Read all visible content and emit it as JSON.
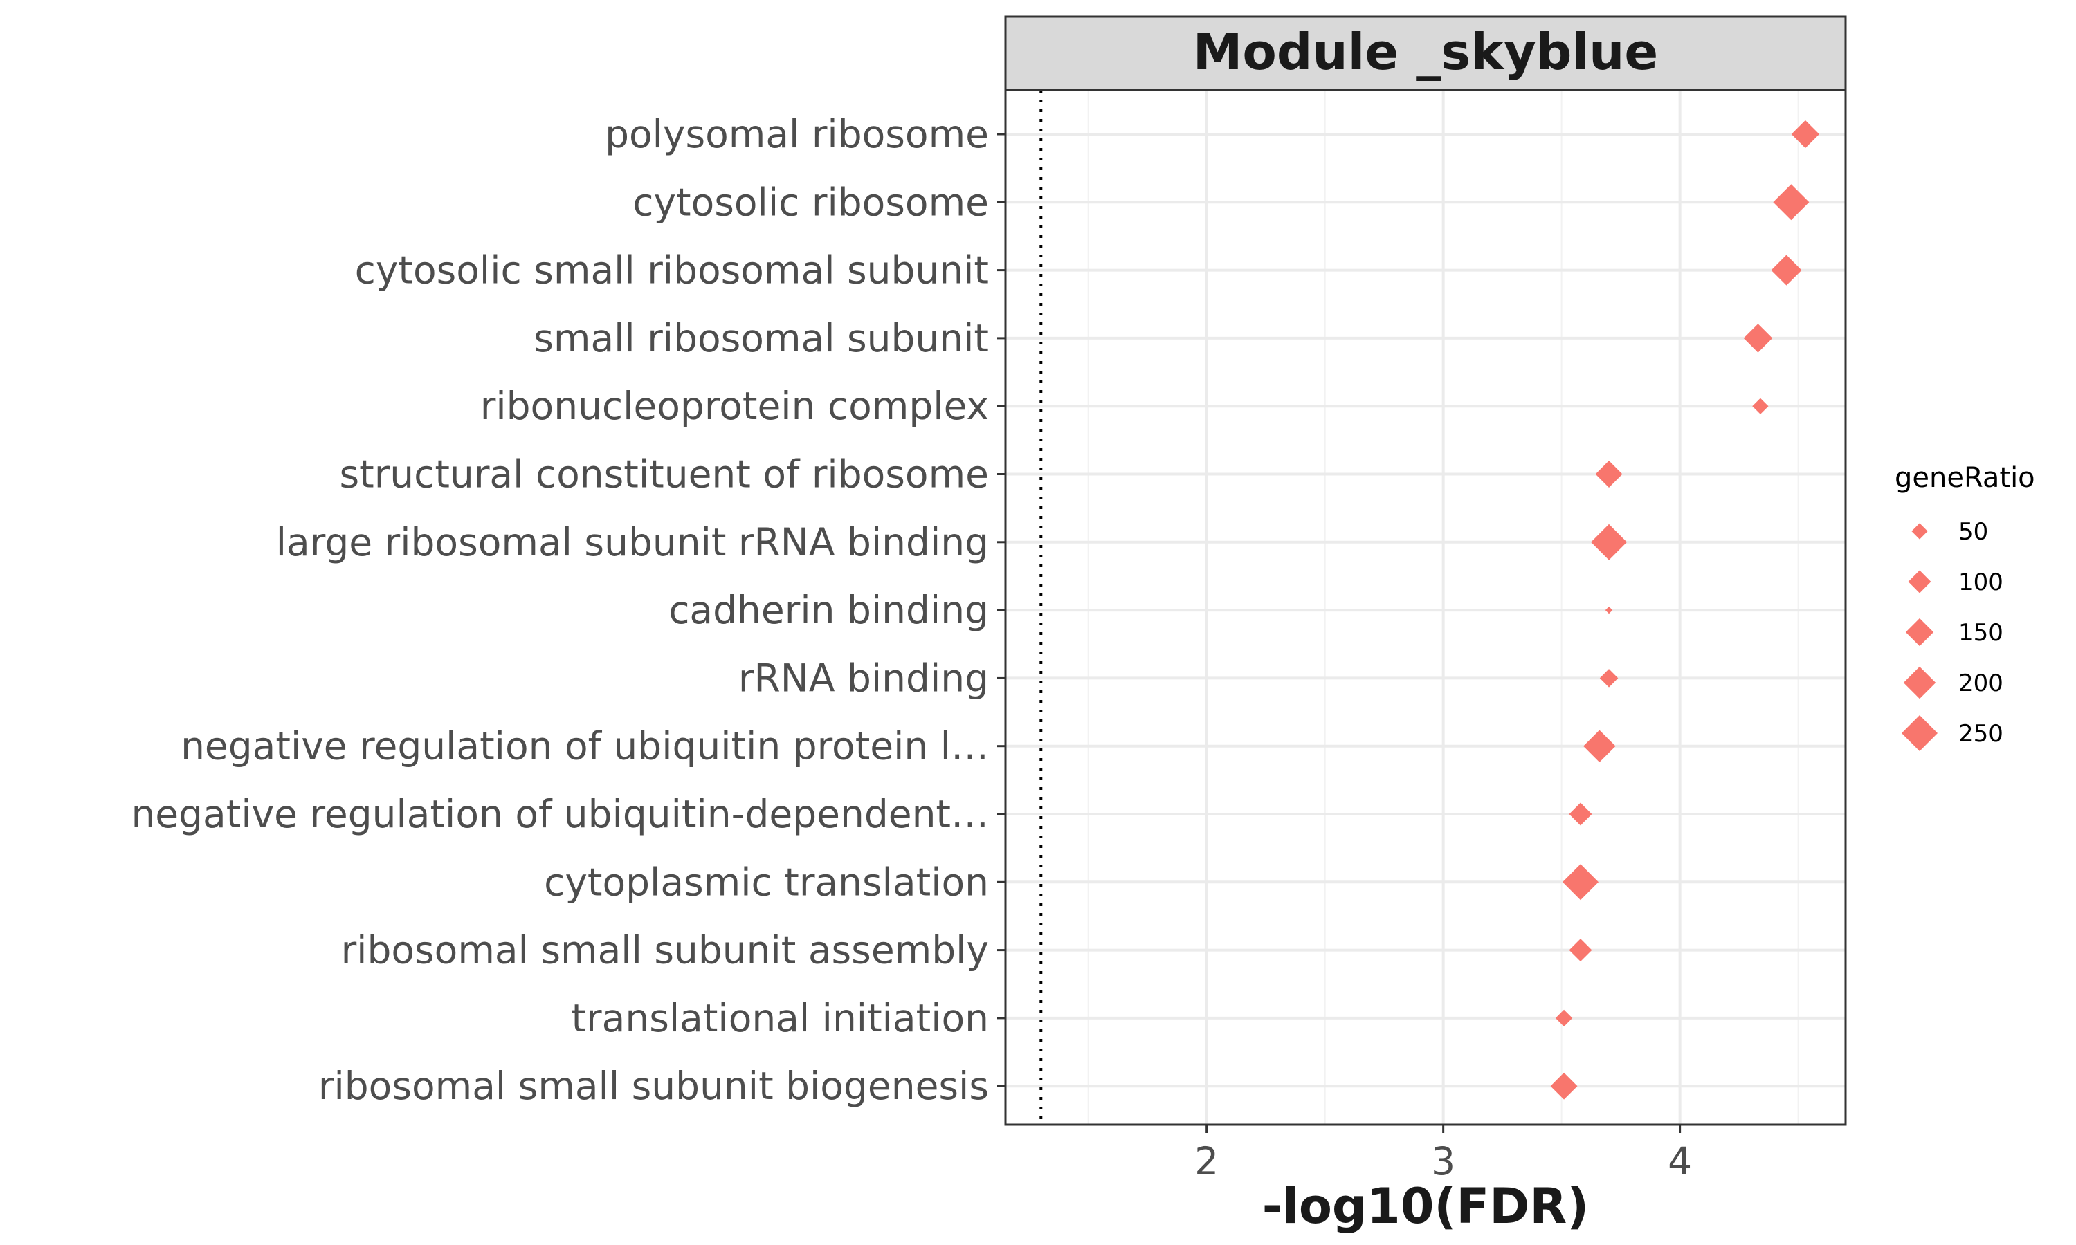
{
  "chart_data": {
    "type": "scatter",
    "title": "Module _skyblue",
    "xlabel": "-log10(FDR)",
    "ylabel": "",
    "xlim": [
      1.15,
      4.7
    ],
    "xticks": [
      2,
      3,
      4
    ],
    "xtick_labels": [
      "2",
      "3",
      "4"
    ],
    "reference_line_x": 1.3,
    "marker": "diamond",
    "colors": {
      "points": "#F8766D",
      "strip_bg": "#D9D9D9",
      "grid": "#EBEBEB",
      "border": "#333333"
    },
    "grid": true,
    "categories": [
      "polysomal ribosome",
      "cytosolic ribosome",
      "cytosolic small ribosomal subunit",
      "small ribosomal subunit",
      "ribonucleoprotein complex",
      "structural constituent of ribosome",
      "large ribosomal subunit rRNA binding",
      "cadherin binding",
      "rRNA binding",
      "negative regulation of ubiquitin protein l…",
      "negative regulation of ubiquitin-dependent…",
      "cytoplasmic translation",
      "ribosomal small subunit assembly",
      "translational initiation",
      "ribosomal small subunit biogenesis"
    ],
    "series": [
      {
        "points": [
          {
            "category": "polysomal ribosome",
            "x": 4.53,
            "geneRatio": 150
          },
          {
            "category": "cytosolic ribosome",
            "x": 4.47,
            "geneRatio": 250
          },
          {
            "category": "cytosolic small ribosomal subunit",
            "x": 4.45,
            "geneRatio": 180
          },
          {
            "category": "small ribosomal subunit",
            "x": 4.33,
            "geneRatio": 160
          },
          {
            "category": "ribonucleoprotein complex",
            "x": 4.34,
            "geneRatio": 50
          },
          {
            "category": "structural constituent of ribosome",
            "x": 3.7,
            "geneRatio": 140
          },
          {
            "category": "large ribosomal subunit rRNA binding",
            "x": 3.7,
            "geneRatio": 250
          },
          {
            "category": "cadherin binding",
            "x": 3.7,
            "geneRatio": 10
          },
          {
            "category": "rRNA binding",
            "x": 3.7,
            "geneRatio": 65
          },
          {
            "category": "negative regulation of ubiquitin protein l…",
            "x": 3.66,
            "geneRatio": 200
          },
          {
            "category": "negative regulation of ubiquitin-dependent…",
            "x": 3.58,
            "geneRatio": 100
          },
          {
            "category": "cytoplasmic translation",
            "x": 3.58,
            "geneRatio": 250
          },
          {
            "category": "ribosomal small subunit assembly",
            "x": 3.58,
            "geneRatio": 100
          },
          {
            "category": "translational initiation",
            "x": 3.51,
            "geneRatio": 55
          },
          {
            "category": "ribosomal small subunit biogenesis",
            "x": 3.51,
            "geneRatio": 140
          }
        ]
      }
    ],
    "legend": {
      "title": "geneRatio",
      "position": "right",
      "items": [
        {
          "label": "50",
          "value": 50
        },
        {
          "label": "100",
          "value": 100
        },
        {
          "label": "150",
          "value": 150
        },
        {
          "label": "200",
          "value": 200
        },
        {
          "label": "250",
          "value": 250
        }
      ]
    }
  }
}
